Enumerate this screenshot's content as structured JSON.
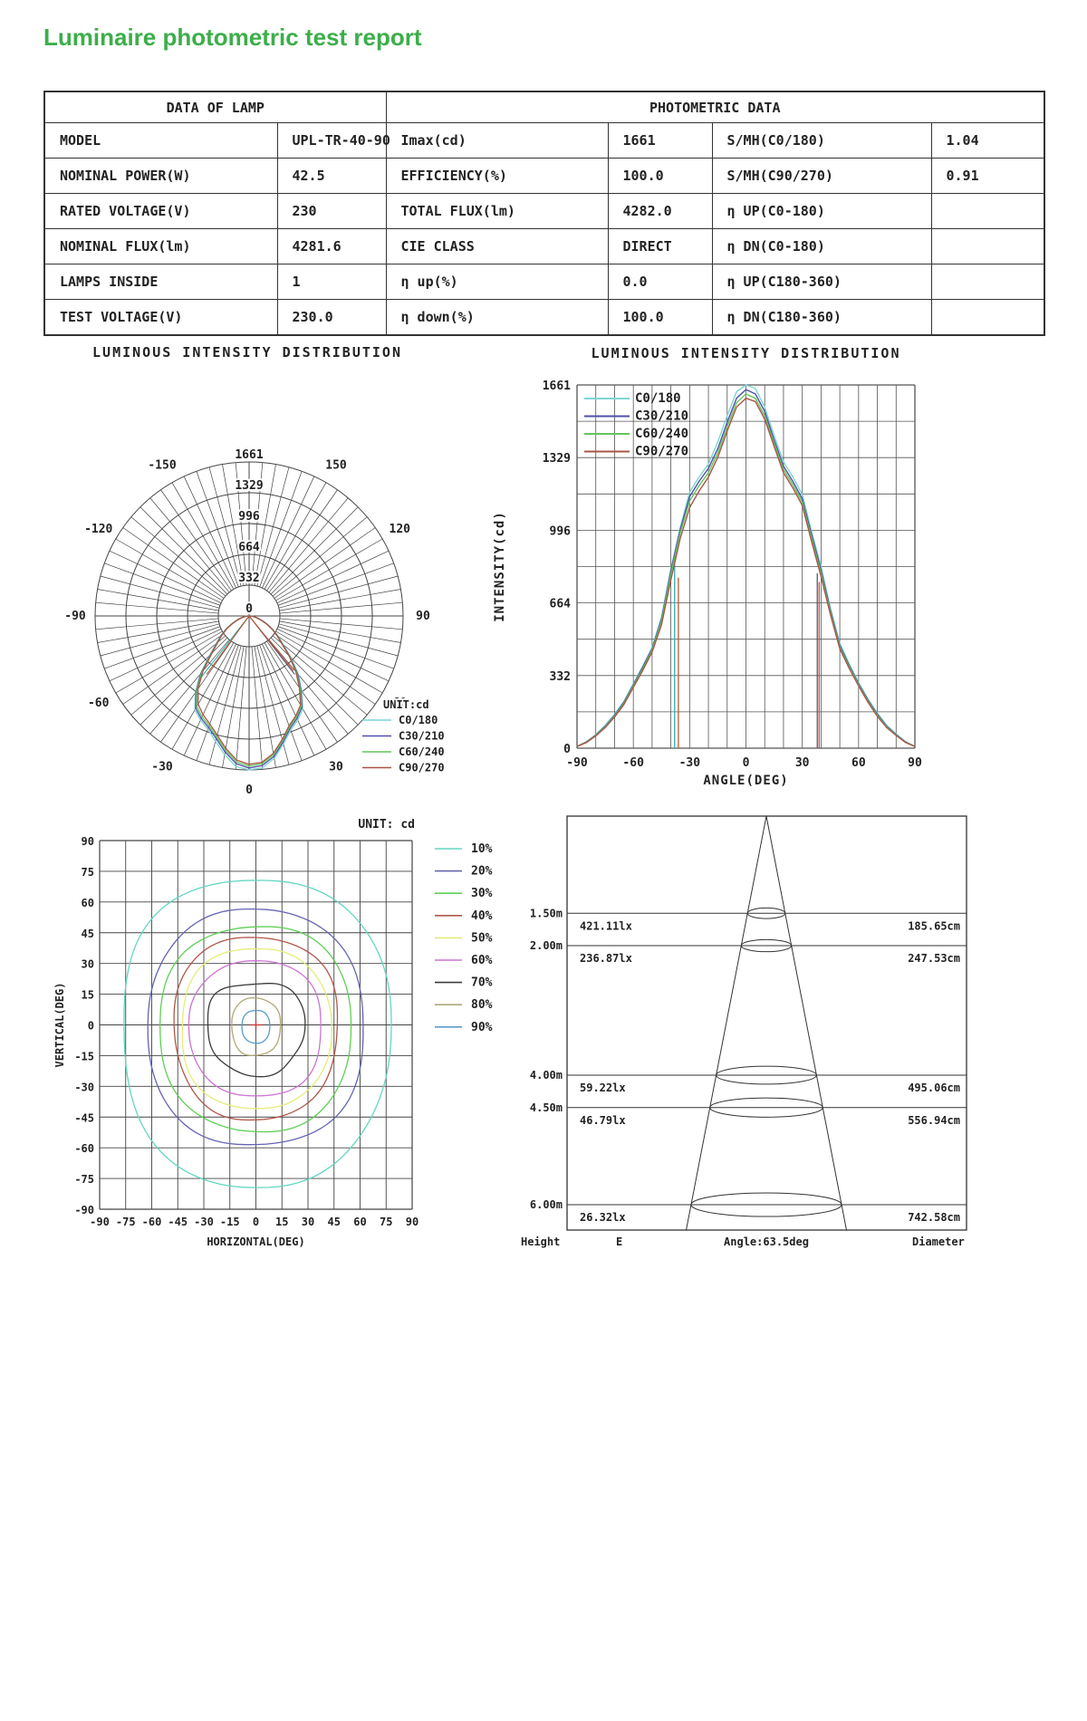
{
  "page": {
    "title": "Luminaire photometric test report",
    "title_color": "#3cae4a"
  },
  "table": {
    "header_left": "DATA OF LAMP",
    "header_right": "PHOTOMETRIC DATA",
    "rows": [
      {
        "c1": "MODEL",
        "c2": "UPL-TR-40-90",
        "c3": "Imax(cd)",
        "c4": "1661",
        "c5": "S/MH(C0/180)",
        "c6": "1.04"
      },
      {
        "c1": "NOMINAL POWER(W)",
        "c2": "42.5",
        "c3": "EFFICIENCY(%)",
        "c4": "100.0",
        "c5": "S/MH(C90/270)",
        "c6": "0.91"
      },
      {
        "c1": "RATED VOLTAGE(V)",
        "c2": "230",
        "c3": "TOTAL FLUX(lm)",
        "c4": "4282.0",
        "c5": "η UP(C0-180)",
        "c6": ""
      },
      {
        "c1": "NOMINAL FLUX(lm)",
        "c2": "4281.6",
        "c3": "CIE CLASS",
        "c4": "DIRECT",
        "c5": "η DN(C0-180)",
        "c6": ""
      },
      {
        "c1": "LAMPS INSIDE",
        "c2": "1",
        "c3": "η up(%)",
        "c4": "0.0",
        "c5": "η UP(C180-360)",
        "c6": ""
      },
      {
        "c1": "TEST VOLTAGE(V)",
        "c2": "230.0",
        "c3": "η down(%)",
        "c4": "100.0",
        "c5": "η DN(C180-360)",
        "c6": ""
      }
    ]
  },
  "chart_data": [
    {
      "id": "polar-intensity",
      "type": "line",
      "title": "LUMINOUS INTENSITY DISTRIBUTION",
      "unit_label": "UNIT:cd",
      "rmax": 1661,
      "radial_ticks": [
        0,
        332,
        664,
        996,
        1329,
        1661
      ],
      "angle_labels": [
        -150,
        -120,
        -90,
        -60,
        -30,
        0,
        30,
        60,
        90,
        120,
        150
      ],
      "angles": [
        -90,
        -85,
        -80,
        -75,
        -70,
        -65,
        -60,
        -55,
        -50,
        -45,
        -40,
        -35,
        -30,
        -25,
        -20,
        -15,
        -10,
        -5,
        0,
        5,
        10,
        15,
        20,
        25,
        30,
        35,
        40,
        45,
        50,
        55,
        60,
        65,
        70,
        75,
        80,
        85,
        90
      ],
      "series": [
        {
          "name": "C0/180",
          "color": "#7fd4d4",
          "values": [
            8,
            30,
            62,
            105,
            155,
            215,
            295,
            375,
            460,
            600,
            820,
            1010,
            1170,
            1240,
            1300,
            1400,
            1520,
            1630,
            1661,
            1645,
            1560,
            1430,
            1310,
            1240,
            1160,
            990,
            830,
            640,
            480,
            385,
            300,
            225,
            160,
            105,
            65,
            30,
            8
          ]
        },
        {
          "name": "C30/210",
          "color": "#5050a8",
          "values": [
            8,
            28,
            60,
            100,
            150,
            210,
            290,
            370,
            455,
            590,
            810,
            1000,
            1150,
            1220,
            1280,
            1370,
            1490,
            1600,
            1640,
            1620,
            1540,
            1410,
            1290,
            1220,
            1140,
            975,
            815,
            630,
            470,
            378,
            295,
            220,
            155,
            100,
            62,
            28,
            8
          ]
        },
        {
          "name": "C60/240",
          "color": "#66c45e",
          "values": [
            8,
            27,
            58,
            97,
            146,
            205,
            285,
            362,
            448,
            580,
            795,
            985,
            1130,
            1200,
            1260,
            1350,
            1470,
            1580,
            1620,
            1600,
            1520,
            1395,
            1275,
            1205,
            1125,
            960,
            800,
            620,
            462,
            372,
            290,
            215,
            150,
            97,
            60,
            27,
            8
          ]
        },
        {
          "name": "C90/270",
          "color": "#a85544",
          "values": [
            8,
            26,
            56,
            94,
            142,
            200,
            278,
            355,
            440,
            565,
            770,
            960,
            1100,
            1175,
            1240,
            1330,
            1450,
            1560,
            1600,
            1585,
            1505,
            1380,
            1260,
            1190,
            1110,
            945,
            785,
            610,
            455,
            365,
            285,
            210,
            145,
            94,
            58,
            26,
            8
          ]
        }
      ],
      "artifacts": [
        {
          "angle": -38,
          "value": 870,
          "color": "#2fb0b0"
        },
        {
          "angle": -36,
          "value": 780,
          "color": "#c05535"
        },
        {
          "angle": 38,
          "value": 800,
          "color": "#55567a"
        },
        {
          "angle": 39,
          "value": 760,
          "color": "#c05535"
        }
      ]
    },
    {
      "id": "cartesian-intensity",
      "type": "line",
      "title": "LUMINOUS INTENSITY DISTRIBUTION",
      "xlabel": "ANGLE(DEG)",
      "ylabel": "INTENSITY(cd)",
      "xlim": [
        -90,
        90
      ],
      "ylim": [
        0,
        1661
      ],
      "x_ticks": [
        -90,
        -60,
        -30,
        0,
        30,
        60,
        90
      ],
      "y_ticks": [
        1661,
        1329,
        996,
        664,
        332,
        0
      ],
      "grid": "minor vertical every 10 deg, horizontal every 166.1 cd",
      "legend_position": "top-left inside",
      "note": "series values shared with chart_data[0]"
    },
    {
      "id": "isocandela-contours",
      "type": "line",
      "unit_label": "UNIT: cd",
      "xlabel": "HORIZONTAL(DEG)",
      "ylabel": "VERTICAL(DEG)",
      "xlim": [
        -90,
        90
      ],
      "ylim": [
        -90,
        90
      ],
      "tick_step": 15,
      "x_ticks": [
        -90,
        -75,
        -60,
        -45,
        -30,
        -15,
        0,
        15,
        30,
        45,
        60,
        75,
        90
      ],
      "y_ticks": [
        90,
        75,
        60,
        45,
        30,
        15,
        0,
        -15,
        -30,
        -45,
        -60,
        -75,
        -90
      ],
      "center_marker_color": "#cc3333",
      "levels": [
        {
          "label": "10%",
          "color": "#63d6c2",
          "h": 77,
          "v_top": 71,
          "v_bottom": 79,
          "wobble": 0.015
        },
        {
          "label": "20%",
          "color": "#6464b4",
          "h": 62,
          "v_top": 56,
          "v_bottom": 59,
          "wobble": 0.015
        },
        {
          "label": "30%",
          "color": "#5ecf55",
          "h": 55,
          "v_top": 48,
          "v_bottom": 52,
          "wobble": 0.015
        },
        {
          "label": "40%",
          "color": "#b05848",
          "h": 47,
          "v_top": 43,
          "v_bottom": 46,
          "wobble": 0.02
        },
        {
          "label": "50%",
          "color": "#e6ec7a",
          "h": 43,
          "v_top": 37,
          "v_bottom": 41,
          "wobble": 0.02
        },
        {
          "label": "60%",
          "color": "#cc74d2",
          "h": 38,
          "v_top": 31,
          "v_bottom": 35,
          "wobble": 0.02
        },
        {
          "label": "70%",
          "color": "#3a3a3a",
          "h": 28,
          "v_top": 21,
          "v_bottom": 24,
          "wobble": 0.06
        },
        {
          "label": "80%",
          "color": "#b0a878",
          "h": 14,
          "v_top": 13,
          "v_bottom": 15,
          "wobble": 0.03
        },
        {
          "label": "90%",
          "color": "#5a9cc8",
          "h": 8,
          "v_top": 7,
          "v_bottom": 9,
          "wobble": 0.02
        }
      ]
    },
    {
      "id": "cone-diagram",
      "type": "table",
      "angle_label": "Angle:63.5deg",
      "footer": {
        "height": "Height",
        "e": "E",
        "diameter": "Diameter"
      },
      "rows": [
        {
          "height": "1.50m",
          "h": 1.5,
          "e": "421.11lx",
          "diameter": "185.65cm",
          "d_cm": 185.65
        },
        {
          "height": "2.00m",
          "h": 2.0,
          "e": "236.87lx",
          "diameter": "247.53cm",
          "d_cm": 247.53
        },
        {
          "height": "4.00m",
          "h": 4.0,
          "e": "59.22lx",
          "diameter": "495.06cm",
          "d_cm": 495.06
        },
        {
          "height": "4.50m",
          "h": 4.5,
          "e": "46.79lx",
          "diameter": "556.94cm",
          "d_cm": 556.94
        },
        {
          "height": "6.00m",
          "h": 6.0,
          "e": "26.32lx",
          "diameter": "742.58cm",
          "d_cm": 742.58
        }
      ]
    }
  ]
}
